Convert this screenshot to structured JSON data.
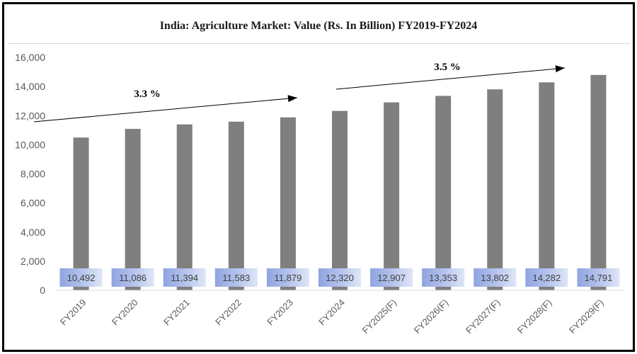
{
  "chart_data": {
    "type": "bar",
    "title": "India: Agriculture Market: Value (Rs. In Billion) FY2019-FY2024",
    "categories": [
      "FY2019",
      "FY2020",
      "FY2021",
      "FY2022",
      "FY2023",
      "FY2024",
      "FY2025(F)",
      "FY2026(F)",
      "FY2027(F)",
      "FY2028(F)",
      "FY2029(F)"
    ],
    "values": [
      10492,
      11086,
      11394,
      11583,
      11879,
      12320,
      12907,
      13353,
      13802,
      14282,
      14791
    ],
    "value_labels": [
      "10,492",
      "11,086",
      "11,394",
      "11,583",
      "11,879",
      "12,320",
      "12,907",
      "13,353",
      "13,802",
      "14,282",
      "14,791"
    ],
    "y_ticks": [
      "0",
      "2,000",
      "4,000",
      "6,000",
      "8,000",
      "10,000",
      "12,000",
      "14,000",
      "16,000"
    ],
    "ylim": [
      0,
      16000
    ],
    "grid": false,
    "legend": "none",
    "annotations": [
      {
        "text": "3.3 %",
        "from_category": "FY2019",
        "to_category": "FY2023"
      },
      {
        "text": "3.5 %",
        "from_category": "FY2024",
        "to_category": "FY2029(F)"
      }
    ],
    "colors": {
      "bar": "#7f7f7f",
      "label_box": "#a7b8e6",
      "label_box_edge": "#dde4f6",
      "arrow": "#000000"
    }
  }
}
